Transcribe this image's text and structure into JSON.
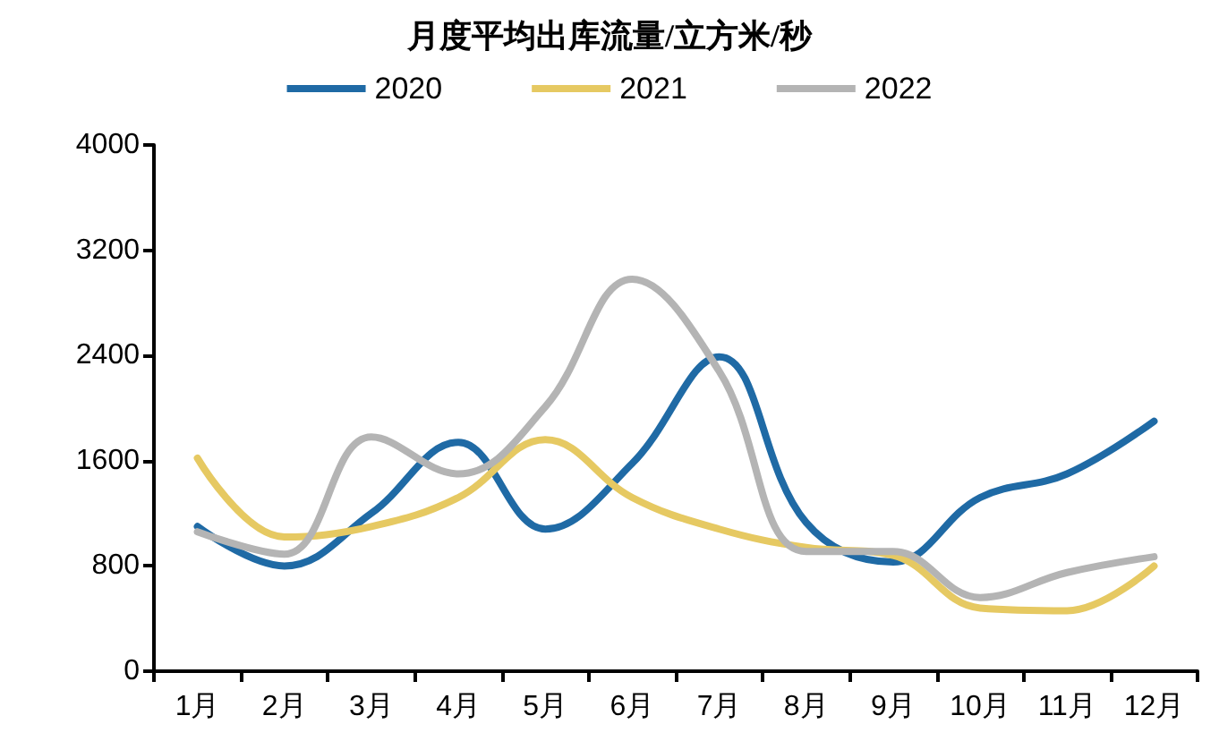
{
  "chart_data": {
    "type": "line",
    "title": "月度平均出库流量/立方米/秒",
    "categories": [
      "1月",
      "2月",
      "3月",
      "4月",
      "5月",
      "6月",
      "7月",
      "8月",
      "9月",
      "10月",
      "11月",
      "12月"
    ],
    "series": [
      {
        "name": "2020",
        "color": "#1f6aa5",
        "values": [
          1100,
          800,
          1200,
          1740,
          1080,
          1580,
          2390,
          1130,
          830,
          1320,
          1500,
          1900
        ]
      },
      {
        "name": "2021",
        "color": "#e6c962",
        "values": [
          1620,
          1020,
          1100,
          1320,
          1760,
          1320,
          1080,
          940,
          880,
          480,
          460,
          800
        ]
      },
      {
        "name": "2022",
        "color": "#b4b4b4",
        "values": [
          1060,
          890,
          1780,
          1500,
          2010,
          2980,
          2280,
          910,
          910,
          560,
          750,
          870
        ]
      }
    ],
    "ylim": [
      0,
      4000
    ],
    "yticks": [
      0,
      800,
      1600,
      2400,
      3200,
      4000
    ],
    "grid": false,
    "legend": "top",
    "marker": "none",
    "line_style": "solid"
  }
}
